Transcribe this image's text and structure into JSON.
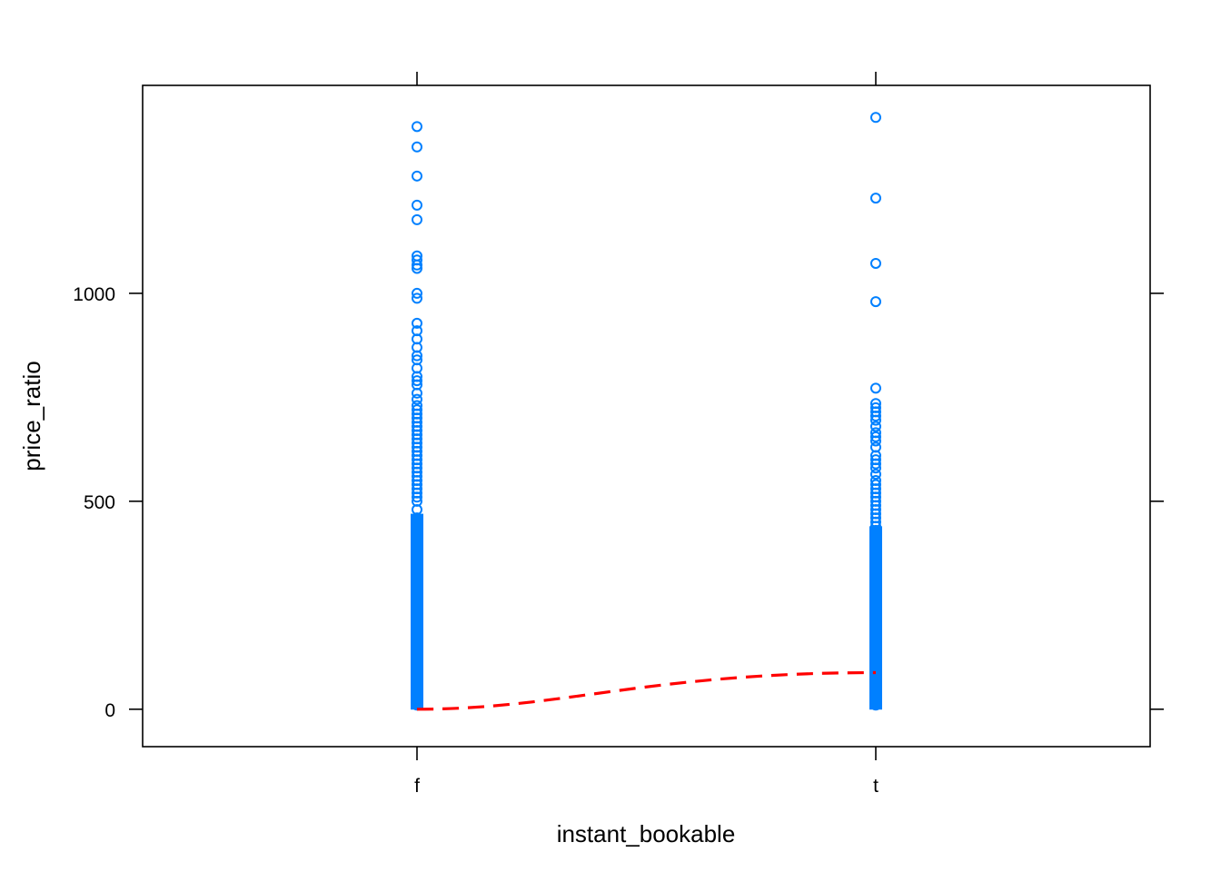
{
  "chart_data": {
    "type": "scatter",
    "xlabel": "instant_bookable",
    "ylabel": "price_ratio",
    "categories": [
      "f",
      "t"
    ],
    "ylim": [
      -90,
      1500
    ],
    "y_ticks": [
      0,
      500,
      1000
    ],
    "grid": false,
    "point_color": "#0080ff",
    "series": [
      {
        "category": "f",
        "values": [
          1401,
          1352,
          1282,
          1212,
          1177,
          1090,
          1080,
          1068,
          1060,
          1000,
          988,
          928,
          910,
          890,
          870,
          850,
          840,
          820,
          800,
          790,
          780,
          760,
          745,
          730,
          720,
          710,
          700,
          690,
          680,
          670,
          660,
          650,
          640,
          630,
          620,
          610,
          600,
          590,
          580,
          570,
          560,
          550,
          540,
          530,
          520,
          510,
          500,
          480,
          460,
          440,
          420,
          400,
          380,
          360,
          340,
          320,
          300,
          280,
          260,
          240,
          220,
          200,
          180,
          160,
          140,
          120,
          100,
          80,
          60,
          40,
          20,
          10
        ]
      },
      {
        "category": "t",
        "values": [
          1423,
          1229,
          1072,
          980,
          772,
          735,
          725,
          715,
          705,
          695,
          680,
          665,
          655,
          645,
          630,
          610,
          600,
          590,
          580,
          565,
          550,
          540,
          530,
          520,
          510,
          500,
          490,
          480,
          470,
          460,
          450,
          440,
          430,
          420,
          410,
          400,
          380,
          360,
          340,
          320,
          300,
          280,
          260,
          240,
          220,
          200,
          180,
          160,
          140,
          120,
          100,
          80,
          60,
          40,
          20,
          10
        ]
      }
    ],
    "trend_line": {
      "color": "#ff0000",
      "style": "dashed",
      "x": [
        "f",
        "t"
      ],
      "values": [
        0,
        88
      ]
    }
  }
}
